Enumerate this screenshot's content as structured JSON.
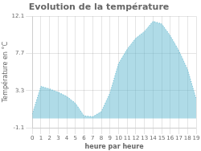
{
  "chart_data": {
    "type": "area",
    "title": "Evolution de la température",
    "x_label": "heure par heure",
    "y_label": "Température en °C",
    "x": [
      0,
      1,
      2,
      3,
      4,
      5,
      6,
      7,
      8,
      9,
      10,
      11,
      12,
      13,
      14,
      15,
      16,
      17,
      18,
      19
    ],
    "values": [
      0.5,
      3.8,
      3.5,
      3.1,
      2.6,
      1.8,
      0.3,
      0.2,
      0.8,
      3.0,
      6.5,
      8.2,
      9.5,
      10.3,
      11.5,
      11.2,
      9.8,
      8.0,
      5.8,
      2.3
    ],
    "color": "#60b8d0",
    "line_style": "dotted",
    "xlim": [
      0,
      19
    ],
    "xticks": [
      0,
      1,
      2,
      3,
      4,
      5,
      6,
      7,
      8,
      9,
      10,
      11,
      12,
      13,
      14,
      15,
      16,
      17,
      18,
      19
    ],
    "ylim": [
      -1.1,
      12.1
    ],
    "yticks": [
      -1.1,
      3.3,
      7.7,
      12.1
    ],
    "grid": true
  }
}
